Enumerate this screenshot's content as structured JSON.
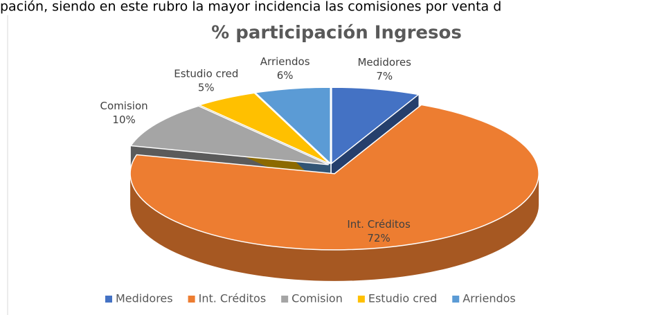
{
  "caption": "pación, siendo en este rubro la mayor incidencia las comisiones por venta d",
  "chart_data": {
    "type": "pie",
    "title": "% participación Ingresos",
    "categories": [
      "Medidores",
      "Int. Créditos",
      "Comision",
      "Estudio cred",
      "Arriendos"
    ],
    "values": [
      7,
      72,
      10,
      5,
      6
    ],
    "value_labels": [
      "7%",
      "72%",
      "10%",
      "5%",
      "6%"
    ],
    "colors": [
      "#4472c4",
      "#ed7d31",
      "#a5a5a5",
      "#ffc000",
      "#5b9bd5"
    ],
    "legend": "bottom"
  }
}
